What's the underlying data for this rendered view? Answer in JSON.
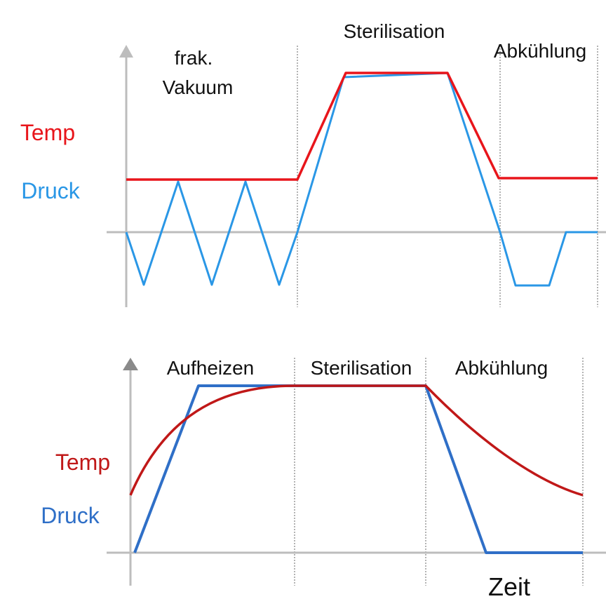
{
  "diagrams": [
    {
      "phases": [
        {
          "lines": [
            "frak.",
            "Vakuum"
          ]
        },
        {
          "lines": [
            "Sterilisation"
          ]
        },
        {
          "lines": [
            "Abkühlung"
          ]
        }
      ],
      "temp_label": "Temp",
      "pressure_label": "Druck"
    },
    {
      "phases": [
        {
          "lines": [
            "Aufheizen"
          ]
        },
        {
          "lines": [
            "Sterilisation"
          ]
        },
        {
          "lines": [
            "Abkühlung"
          ]
        }
      ],
      "temp_label": "Temp",
      "pressure_label": "Druck",
      "time_label": "Zeit"
    }
  ]
}
